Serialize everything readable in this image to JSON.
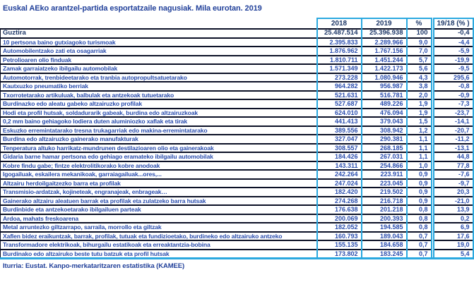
{
  "title": "Euskal AEko arantzel-partida esportatzaile nagusiak. Mila eurotan. 2019",
  "source": "Iturria: Eustat. Kanpo-merkataritzaren estatistika (KAMEE)",
  "colors": {
    "accent_cyan": "#2AA8DF",
    "row_separator": "#0B1026",
    "heading_navy": "#1C3667",
    "row_blue": "#2A4DAD",
    "title_blue": "#21409A"
  },
  "chart_data": {
    "type": "table",
    "title": "Euskal AEko arantzel-partida esportatzaile nagusiak. Mila eurotan. 2019",
    "columns": [
      "2018",
      "2019",
      "%",
      "19/18 (% )"
    ],
    "rows": [
      [
        "Guztira",
        "25.487.514",
        "25.396.938",
        "100",
        "-0,4"
      ],
      [
        "10 pertsona baino gutxiagoko turismoak",
        "2.395.833",
        "2.289.966",
        "9,0",
        "-4,4"
      ],
      [
        "Automobilentzako zati eta osagarriak",
        "1.876.962",
        "1.767.156",
        "7,0",
        "-5,9"
      ],
      [
        "Petrolioaren olio finduak",
        "1.810.711",
        "1.451.244",
        "5,7",
        "-19,9"
      ],
      [
        "Zamak garraiatzeko ibilgailu automobilak",
        "1.571.349",
        "1.422.173",
        "5,6",
        "-9,5"
      ],
      [
        "Automotorrak, trenbideetarako eta tranbia autopropultsatuetarako",
        "273.228",
        "1.080.946",
        "4,3",
        "295,6"
      ],
      [
        "Kautxuzko pneumatiko berriak",
        "964.282",
        "956.987",
        "3,8",
        "-0,8"
      ],
      [
        "Txorrotetarako artikuluak, balbulak eta antzekoak tutuetarako",
        "521.631",
        "516.781",
        "2,0",
        "-0,9"
      ],
      [
        "Burdinazko edo aleatu gabeko altzairuzko profilak",
        "527.687",
        "489.226",
        "1,9",
        "-7,3"
      ],
      [
        "Hodi eta profil hutsak, soldadurarik gabeak, burdina edo altzairuzkoak",
        "624.010",
        "476.094",
        "1,9",
        "-23,7"
      ],
      [
        "0,2 mm baino gehiagoko lodiera duten aluminiozko xaflak eta tirak",
        "441.413",
        "379.043",
        "1,5",
        "-14,1"
      ],
      [
        "Eskuzko erremintatarako tresna trukagarriak edo  makina-erremintatarako",
        "389.556",
        "308.942",
        "1,2",
        "-20,7"
      ],
      [
        "Burdina edo altzairuzko gainerako manufakturak",
        "327.047",
        "290.381",
        "1,1",
        "-11,2"
      ],
      [
        "Tenperatura altuko harrikatz-mundrunen destilazioaren olio eta gainerakoak",
        "308.557",
        "268.185",
        "1,1",
        "-13,1"
      ],
      [
        "Gidaria barne hamar pertsona edo gehiago eramateko ibilgailu automobilak",
        "184.426",
        "267.031",
        "1,1",
        "44,8"
      ],
      [
        "Kobre findu gabe; fintze elektrolitikorako kobre anodoak",
        "143.311",
        "254.866",
        "1,0",
        "77,8"
      ],
      [
        "Igogailuak, eskailera mekanikoak, garraiagailuak...ores,...",
        "242.264",
        "223.911",
        "0,9",
        "-7,6"
      ],
      [
        "Altzairu herdoilgaitzezko barra eta profilak",
        "247.024",
        "223.045",
        "0,9",
        "-9,7"
      ],
      [
        "Transmisio-ardatzak, kojineteak, engranajeak, enbrageak…",
        "182.420",
        "219.502",
        "0,9",
        "20,3"
      ],
      [
        "Gainerako altzairu aleatuen barrak eta profilak eta zulatzeko barra hutsak",
        "274.268",
        "216.718",
        "0,9",
        "-21,0"
      ],
      [
        "Burdinbide eta antzekoetarako ibilgailuen parteak",
        "176.638",
        "201.218",
        "0,8",
        "13,9"
      ],
      [
        "Ardoa, mahats freskoarena",
        "200.069",
        "200.393",
        "0,8",
        "0,2"
      ],
      [
        "Metal arruntezko giltzarrapo, sarraila, morrollo eta giltzak",
        "182.052",
        "194.585",
        "0,8",
        "6,9"
      ],
      [
        "Xaflen bidez eraikuntzak, barrak, profilak, tutuak eta fundizioetako, burdineko edo altzairuko antzeko",
        "160.793",
        "189.043",
        "0,7",
        "17,6"
      ],
      [
        "Transformadore elektrikoak, bihurgailu estatikoak eta erreaktantzia-bobina",
        "155.135",
        "184.658",
        "0,7",
        "19,0"
      ],
      [
        "Burdinako edo altzairuko beste tutu batzuk eta profil hutsak",
        "173.802",
        "183.245",
        "0,7",
        "5,4"
      ]
    ]
  }
}
